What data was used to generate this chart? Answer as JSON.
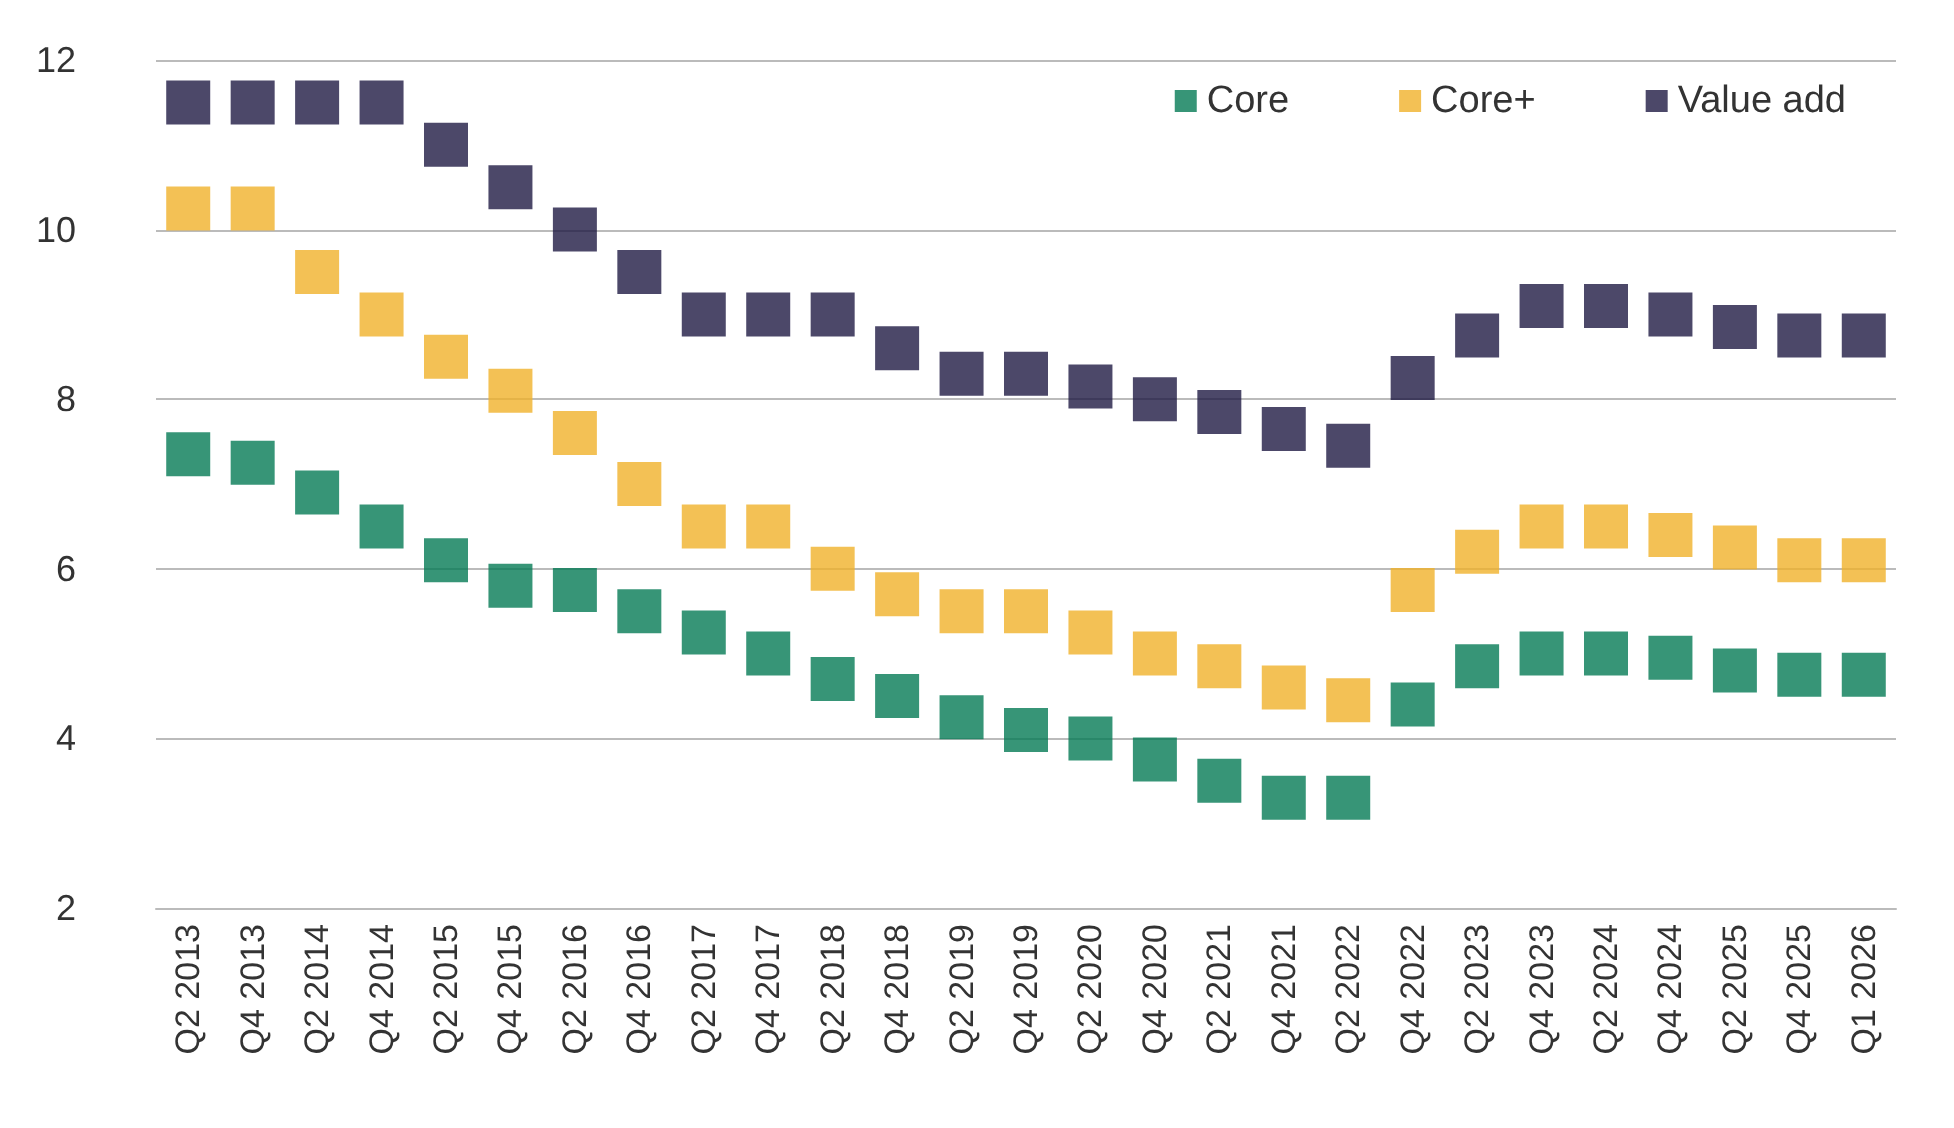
{
  "chart_data": {
    "type": "scatter",
    "categories": [
      "Q2 2013",
      "Q4 2013",
      "Q2 2014",
      "Q4 2014",
      "Q2 2015",
      "Q4 2015",
      "Q2 2016",
      "Q4 2016",
      "Q2 2017",
      "Q4 2017",
      "Q2 2018",
      "Q4 2018",
      "Q2 2019",
      "Q4 2019",
      "Q2 2020",
      "Q4 2020",
      "Q2 2021",
      "Q4 2021",
      "Q2 2022",
      "Q4 2022",
      "Q2 2023",
      "Q4 2023",
      "Q2 2024",
      "Q4 2024",
      "Q2 2025",
      "Q4 2025",
      "Q1 2026"
    ],
    "series": [
      {
        "name": "Core",
        "color": "#057a55",
        "values": [
          7.35,
          7.25,
          6.9,
          6.5,
          6.1,
          5.8,
          5.75,
          5.5,
          5.25,
          5.0,
          4.7,
          4.5,
          4.25,
          4.1,
          4.0,
          3.75,
          3.5,
          3.3,
          3.3,
          4.4,
          4.85,
          5.0,
          5.0,
          4.95,
          4.8,
          4.75,
          4.75
        ]
      },
      {
        "name": "Core+",
        "color": "#f0b22b",
        "values": [
          10.25,
          10.25,
          9.5,
          9.0,
          8.5,
          8.1,
          7.6,
          7.0,
          6.5,
          6.5,
          6.0,
          5.7,
          5.5,
          5.5,
          5.25,
          5.0,
          4.85,
          4.6,
          4.45,
          5.75,
          6.2,
          6.5,
          6.5,
          6.4,
          6.25,
          6.1,
          6.1
        ]
      },
      {
        "name": "Value add",
        "color": "#1f1a43",
        "values": [
          11.5,
          11.5,
          11.5,
          11.5,
          11.0,
          10.5,
          10.0,
          9.5,
          9.0,
          9.0,
          9.0,
          8.6,
          8.3,
          8.3,
          8.15,
          8.0,
          7.85,
          7.65,
          7.45,
          8.25,
          8.75,
          9.1,
          9.1,
          9.0,
          8.85,
          8.75,
          8.75
        ]
      }
    ],
    "ylim": [
      2,
      12
    ],
    "yticks": [
      2,
      4,
      6,
      8,
      10,
      12
    ],
    "grid": "y",
    "legend": "top right",
    "marker": "square"
  }
}
